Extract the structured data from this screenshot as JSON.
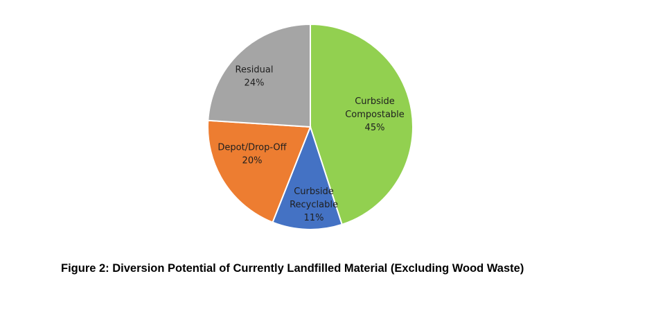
{
  "caption": "Figure 2:  Diversion Potential of Currently Landfilled Material (Excluding Wood Waste)",
  "chart_data": {
    "type": "pie",
    "title": "",
    "start_angle_deg": 0,
    "direction": "clockwise",
    "slices": [
      {
        "label_lines": [
          "Curbside",
          "Compostable"
        ],
        "value": 45,
        "value_label": "45%",
        "color": "#92D050"
      },
      {
        "label_lines": [
          "Curbside",
          "Recyclable"
        ],
        "value": 11,
        "value_label": "11%",
        "color": "#4472C4"
      },
      {
        "label_lines": [
          "Depot/Drop-Off"
        ],
        "value": 20,
        "value_label": "20%",
        "color": "#ED7D31"
      },
      {
        "label_lines": [
          "Residual"
        ],
        "value": 24,
        "value_label": "24%",
        "color": "#A5A5A5"
      }
    ]
  }
}
